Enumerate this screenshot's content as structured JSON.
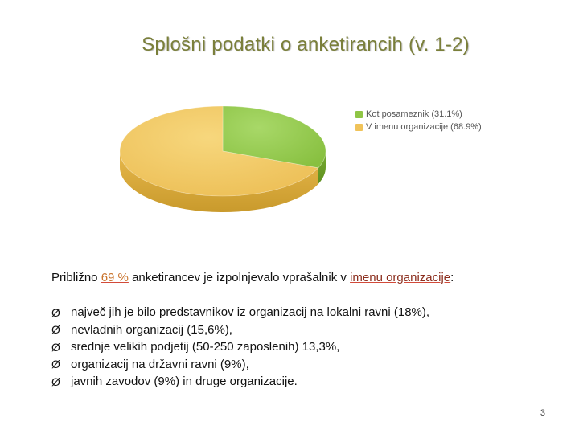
{
  "slide": {
    "title": "Splošni podatki o anketirancih (v. 1-2)",
    "page_number": "3"
  },
  "chart_data": {
    "type": "pie",
    "labels": [
      "Kot posameznik (31.1%)",
      "V imenu organizacije (68.9%)"
    ],
    "values": [
      31.1,
      68.9
    ],
    "colors": [
      "#8fc545",
      "#f0c35a"
    ],
    "legend_position": "top-right",
    "style": "3d"
  },
  "lead_text": {
    "prefix": "Približno ",
    "percent": "69 %",
    "middle": " anketirancev je izpolnjevalo vprašalnik v ",
    "emphasis": "imenu organizacije",
    "suffix": ":"
  },
  "bullets": [
    "največ jih je bilo predstavnikov iz organizacij na lokalni ravni (18%),",
    "nevladnih organizacij (15,6%),",
    "srednje velikih podjetij (50-250 zaposlenih) 13,3%,",
    "organizacij na državni ravni (9%),",
    "javnih zavodov (9%) in druge organizacije."
  ],
  "bullet_glyph": "Ø"
}
